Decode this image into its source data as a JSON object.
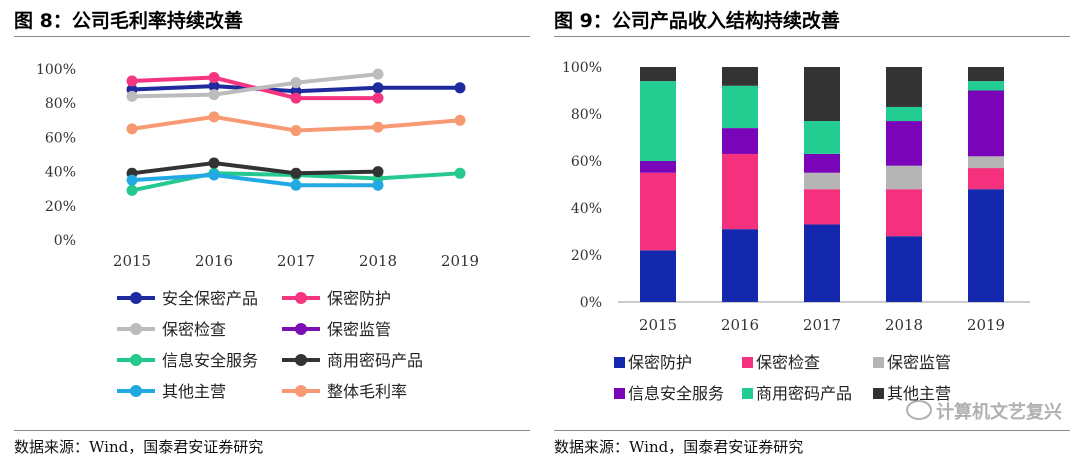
{
  "left": {
    "title": "图 8：公司毛利率持续改善",
    "source": "数据来源：Wind，国泰君安证券研究"
  },
  "right": {
    "title": "图 9：公司产品收入结构持续改善",
    "source": "数据来源：Wind，国泰君安证券研究"
  },
  "watermark": "计算机文艺复兴",
  "chart_data": [
    {
      "type": "line",
      "title": "图 8：公司毛利率持续改善",
      "x": [
        "2015",
        "2016",
        "2017",
        "2018",
        "2019"
      ],
      "yticks": [
        "0%",
        "20%",
        "40%",
        "60%",
        "80%",
        "100%"
      ],
      "ylim": [
        0,
        100
      ],
      "series": [
        {
          "name": "安全保密产品",
          "color": "#1f2a9e",
          "values": [
            88,
            90,
            87,
            89,
            89
          ]
        },
        {
          "name": "保密防护",
          "color": "#f5357f",
          "values": [
            93,
            95,
            83,
            83,
            null
          ]
        },
        {
          "name": "保密检查",
          "color": "#bcbcbc",
          "values": [
            84,
            85,
            92,
            97,
            null
          ]
        },
        {
          "name": "保密监管",
          "color": "#7b0fb3",
          "values": [
            null,
            null,
            null,
            null,
            null
          ]
        },
        {
          "name": "信息安全服务",
          "color": "#25c98e",
          "values": [
            29,
            39,
            38,
            36,
            39
          ]
        },
        {
          "name": "商用密码产品",
          "color": "#333333",
          "values": [
            39,
            45,
            39,
            40,
            null
          ]
        },
        {
          "name": "其他主营",
          "color": "#22a9e3",
          "values": [
            35,
            38,
            32,
            32,
            null
          ]
        },
        {
          "name": "整体毛利率",
          "color": "#f79a73",
          "values": [
            65,
            72,
            64,
            66,
            70
          ]
        }
      ]
    },
    {
      "type": "bar",
      "stacked": true,
      "title": "图 9：公司产品收入结构持续改善",
      "categories": [
        "2015",
        "2016",
        "2017",
        "2018",
        "2019"
      ],
      "yticks": [
        "0%",
        "20%",
        "40%",
        "60%",
        "80%",
        "100%"
      ],
      "ylim": [
        0,
        100
      ],
      "series": [
        {
          "name": "保密防护",
          "color": "#1428ad",
          "values": [
            22,
            31,
            33,
            28,
            48
          ]
        },
        {
          "name": "保密检查",
          "color": "#f5307c",
          "values": [
            33,
            32,
            15,
            20,
            9
          ]
        },
        {
          "name": "保密监管",
          "color": "#b5b5b5",
          "values": [
            0,
            0,
            7,
            10,
            5
          ]
        },
        {
          "name": "信息安全服务",
          "color": "#7a05b8",
          "values": [
            5,
            11,
            8,
            19,
            28
          ]
        },
        {
          "name": "商用密码产品",
          "color": "#23cc90",
          "values": [
            34,
            18,
            14,
            6,
            4
          ]
        },
        {
          "name": "其他主营",
          "color": "#333333",
          "values": [
            6,
            8,
            23,
            17,
            6
          ]
        }
      ]
    }
  ]
}
